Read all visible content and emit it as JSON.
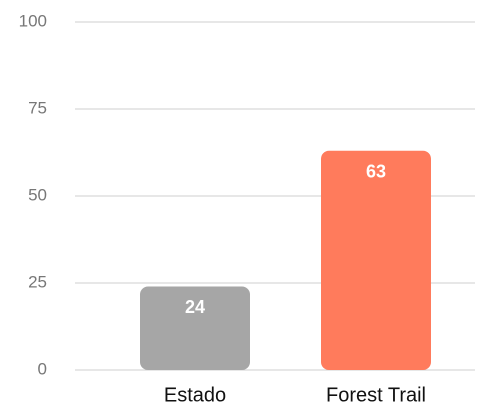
{
  "chart_data": {
    "type": "bar",
    "categories": [
      "Estado",
      "Forest Trail"
    ],
    "values": [
      24,
      63
    ],
    "colors": [
      "#a6a6a6",
      "#ff7b5c"
    ],
    "ylim": [
      0,
      100
    ],
    "yticks": [
      0,
      25,
      50,
      75,
      100
    ],
    "grid": true
  }
}
